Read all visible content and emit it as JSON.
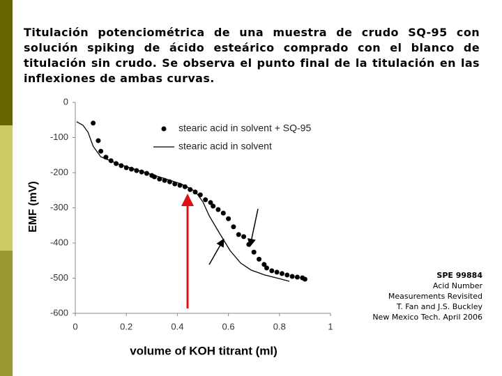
{
  "caption": "Titulación potenciométrica de una muestra de crudo SQ-95 con solución spiking de ácido esteárico comprado con el blanco de titulación sin crudo. Se observa el punto final  de la titulación en las inflexiones de ambas curvas.",
  "citation": [
    "SPE 99884",
    "Acid Number",
    "Measurements Revisited",
    "T. Fan and J.S. Buckley",
    "New Mexico Tech. April 2006"
  ],
  "chart_data": {
    "type": "scatter",
    "xlabel": "volume of KOH titrant (ml)",
    "ylabel": "EMF (mV)",
    "xlim": [
      0,
      1
    ],
    "xticks": [
      0,
      0.2,
      0.4,
      0.6,
      0.8,
      1
    ],
    "ylim": [
      -600,
      0
    ],
    "yticks": [
      -600,
      -500,
      -400,
      -300,
      -200,
      -100,
      0
    ],
    "series": [
      {
        "name": "stearic acid in solvent + SQ-95",
        "color": "#000000",
        "style": "markers",
        "x": [
          0.07,
          0.09,
          0.1,
          0.12,
          0.14,
          0.16,
          0.18,
          0.2,
          0.22,
          0.24,
          0.26,
          0.28,
          0.3,
          0.31,
          0.33,
          0.35,
          0.37,
          0.39,
          0.41,
          0.43,
          0.45,
          0.47,
          0.49,
          0.51,
          0.53,
          0.54,
          0.56,
          0.58,
          0.6,
          0.62,
          0.64,
          0.66,
          0.68,
          0.7,
          0.72,
          0.74,
          0.75,
          0.77,
          0.79,
          0.81,
          0.83,
          0.85,
          0.87,
          0.89,
          0.9
        ],
        "values": [
          -59,
          -109,
          -139,
          -156,
          -166,
          -174,
          -180,
          -186,
          -190,
          -194,
          -198,
          -202,
          -208,
          -212,
          -218,
          -222,
          -226,
          -232,
          -236,
          -240,
          -248,
          -255,
          -263,
          -277,
          -285,
          -295,
          -305,
          -315,
          -331,
          -354,
          -376,
          -382,
          -404,
          -426,
          -446,
          -461,
          -471,
          -479,
          -483,
          -487,
          -491,
          -495,
          -497,
          -499,
          -503
        ]
      },
      {
        "name": "stearic acid in solvent",
        "color": "#000000",
        "style": "line",
        "x": [
          0.005,
          0.03,
          0.05,
          0.07,
          0.1,
          0.17,
          0.25,
          0.33,
          0.415,
          0.47,
          0.5,
          0.525,
          0.565,
          0.607,
          0.648,
          0.689,
          0.743,
          0.798,
          0.839
        ],
        "values": [
          -55,
          -65,
          -85,
          -125,
          -155,
          -176,
          -194,
          -212,
          -232,
          -253,
          -283,
          -323,
          -372,
          -422,
          -457,
          -477,
          -491,
          -501,
          -509
        ]
      }
    ]
  }
}
